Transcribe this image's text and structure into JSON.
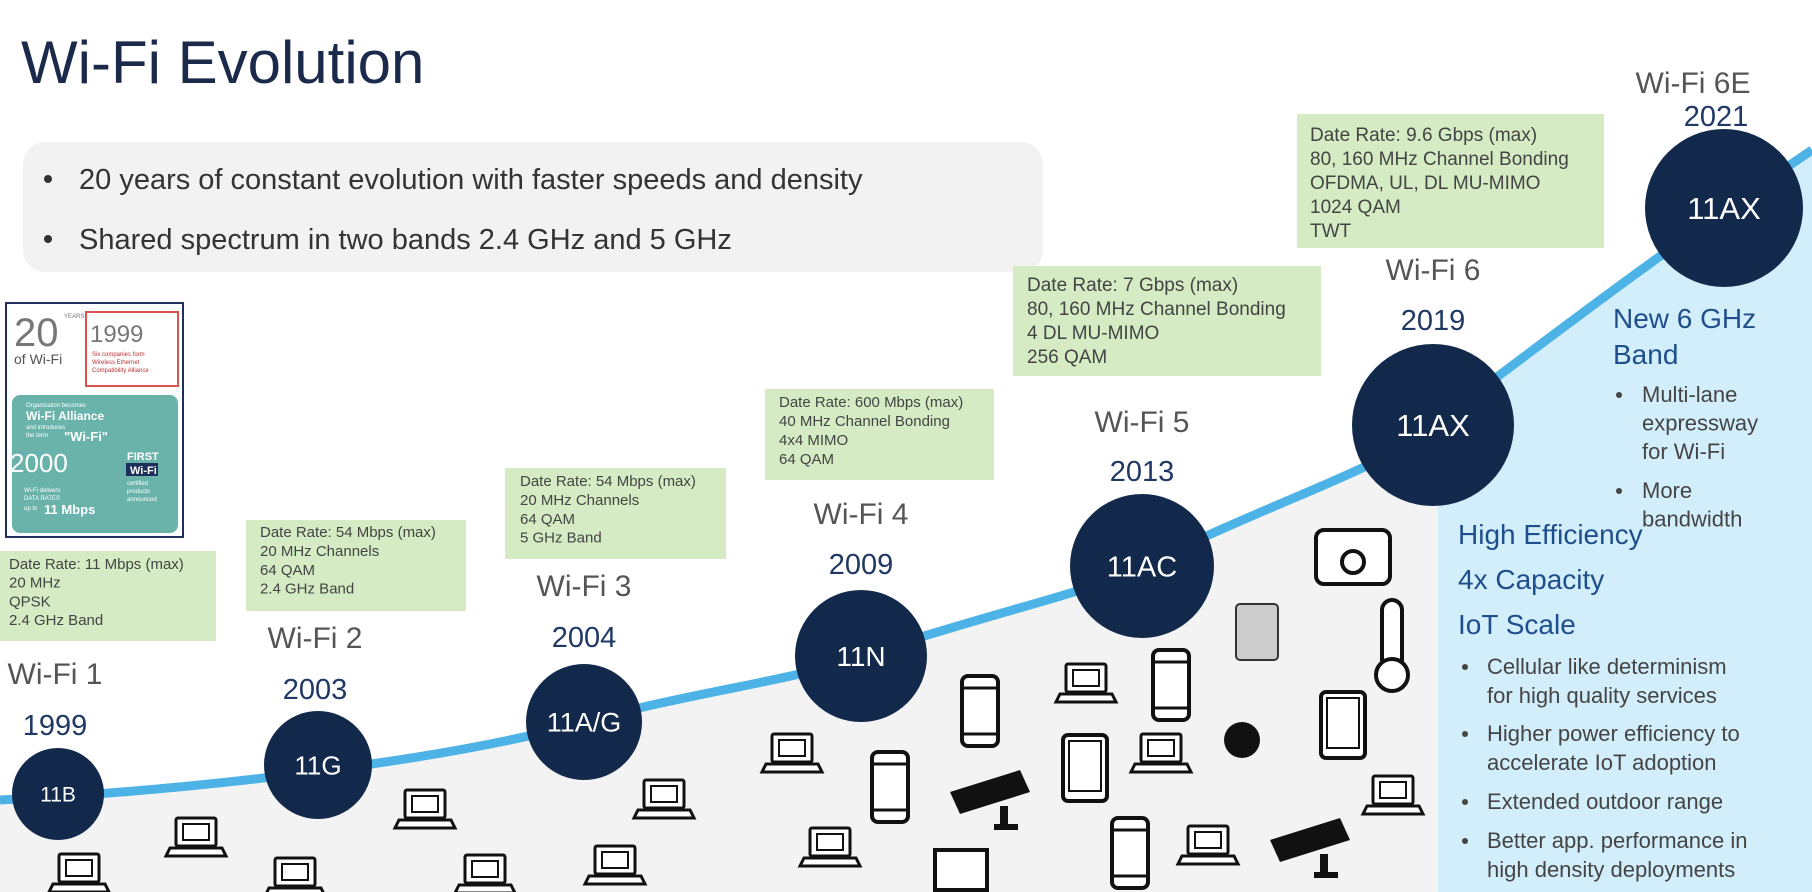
{
  "title": "Wi-Fi Evolution",
  "bullets": [
    "20 years of constant evolution with faster speeds and density",
    "Shared spectrum in two bands 2.4 GHz and 5 GHz"
  ],
  "inset": {
    "texts": [
      "20",
      "YEARS",
      "of Wi-Fi",
      "1999",
      "Six companies form",
      "Wireless Ethernet",
      "Compatibility Alliance",
      "Organization becomes",
      "Wi-Fi Alliance",
      "and introduces",
      "the term",
      "\"Wi-Fi\"",
      "2000",
      "FIRST",
      "Wi-Fi",
      "certified",
      "products",
      "announced",
      "Wi-Fi delivers",
      "DATA RATES",
      "up to",
      "11 Mbps"
    ]
  },
  "generations": [
    {
      "name": "Wi-Fi 1",
      "year": "1999",
      "standard": "11B",
      "specs": [
        "Date Rate: 11 Mbps (max)",
        "20 MHz",
        "QPSK",
        "2.4  GHz Band"
      ]
    },
    {
      "name": "Wi-Fi 2",
      "year": "2003",
      "standard": "11G",
      "specs": [
        "Date Rate: 54 Mbps (max)",
        "20 MHz Channels",
        "64 QAM",
        "2.4  GHz Band"
      ]
    },
    {
      "name": "Wi-Fi 3",
      "year": "2004",
      "standard": "11A/G",
      "specs": [
        "Date Rate: 54 Mbps (max)",
        "20 MHz Channels",
        "64 QAM",
        "5 GHz Band"
      ]
    },
    {
      "name": "Wi-Fi 4",
      "year": "2009",
      "standard": "11N",
      "specs": [
        "Date Rate: 600 Mbps (max)",
        "40 MHz Channel Bonding",
        "4x4 MIMO",
        "64 QAM"
      ]
    },
    {
      "name": "Wi-Fi 5",
      "year": "2013",
      "standard": "11AC",
      "specs": [
        "Date Rate: 7 Gbps (max)",
        "80, 160 MHz Channel Bonding",
        "4 DL MU-MIMO",
        "256 QAM"
      ]
    },
    {
      "name": "Wi-Fi 6",
      "year": "2019",
      "standard": "11AX",
      "specs": [
        "Date Rate: 9.6 Gbps (max)",
        "80, 160 MHz Channel Bonding",
        "OFDMA, UL, DL MU-MIMO",
        "1024 QAM",
        "TWT"
      ]
    },
    {
      "name": "Wi-Fi 6E",
      "year": "2021",
      "standard": "11AX"
    }
  ],
  "band_panel": {
    "title_lines": [
      "New 6 GHz",
      "Band"
    ],
    "bullets": [
      [
        "Multi-lane",
        "expressway",
        "for Wi-Fi"
      ],
      [
        "More",
        "bandwidth"
      ]
    ]
  },
  "efficiency": {
    "headings": [
      "High Efficiency",
      "4x Capacity",
      "IoT Scale"
    ],
    "bullets": [
      [
        "Cellular like determinism",
        "for high quality services"
      ],
      [
        "Higher power efficiency to",
        "accelerate IoT adoption"
      ],
      [
        "Extended outdoor range"
      ],
      [
        "Better app. performance in",
        "high density deployments"
      ]
    ]
  }
}
